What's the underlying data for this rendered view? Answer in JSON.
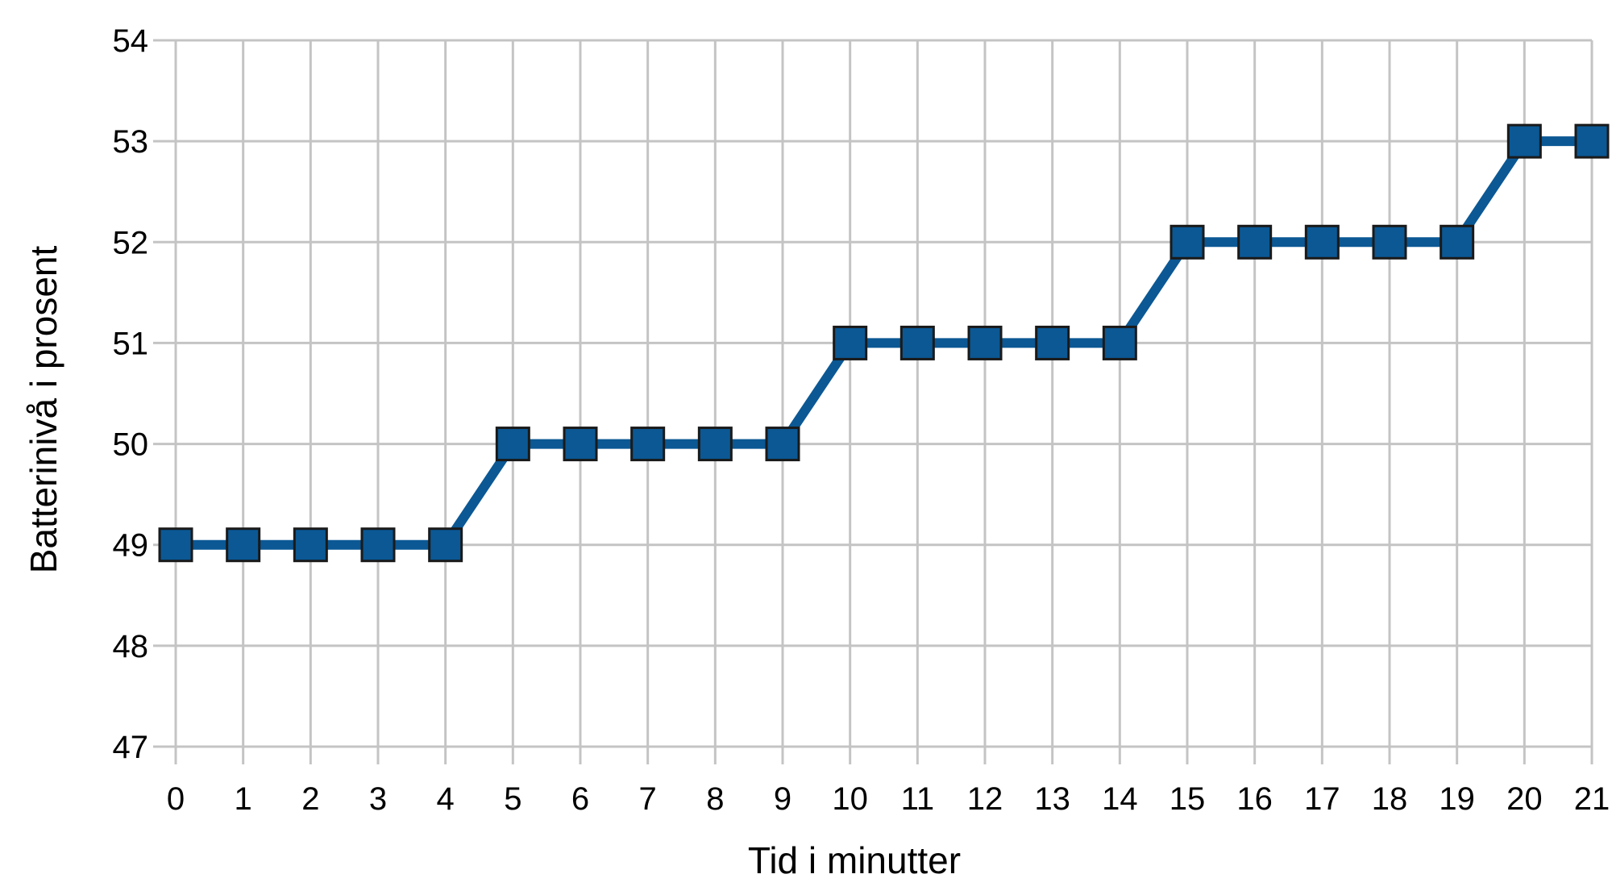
{
  "chart_data": {
    "type": "line",
    "title": "",
    "xlabel": "Tid i minutter",
    "ylabel": "Batterinivå i prosent",
    "x": [
      0,
      1,
      2,
      3,
      4,
      5,
      6,
      7,
      8,
      9,
      10,
      11,
      12,
      13,
      14,
      15,
      16,
      17,
      18,
      19,
      20,
      21
    ],
    "x_tick_labels": [
      "0",
      "1",
      "2",
      "3",
      "4",
      "5",
      "6",
      "7",
      "8",
      "9",
      "10",
      "11",
      "12",
      "13",
      "14",
      "15",
      "16",
      "17",
      "18",
      "19",
      "20",
      "21"
    ],
    "y_ticks": [
      47,
      48,
      49,
      50,
      51,
      52,
      53,
      54
    ],
    "y_tick_labels": [
      "47",
      "48",
      "49",
      "50",
      "51",
      "52",
      "53",
      "54"
    ],
    "xlim": [
      0,
      21
    ],
    "ylim": [
      47,
      54
    ],
    "grid": true,
    "legend": "none",
    "marker": "square",
    "series": [
      {
        "values": [
          49,
          49,
          49,
          49,
          49,
          50,
          50,
          50,
          50,
          50,
          51,
          51,
          51,
          51,
          51,
          52,
          52,
          52,
          52,
          52,
          53,
          53
        ],
        "color": "#0b5894"
      }
    ]
  }
}
